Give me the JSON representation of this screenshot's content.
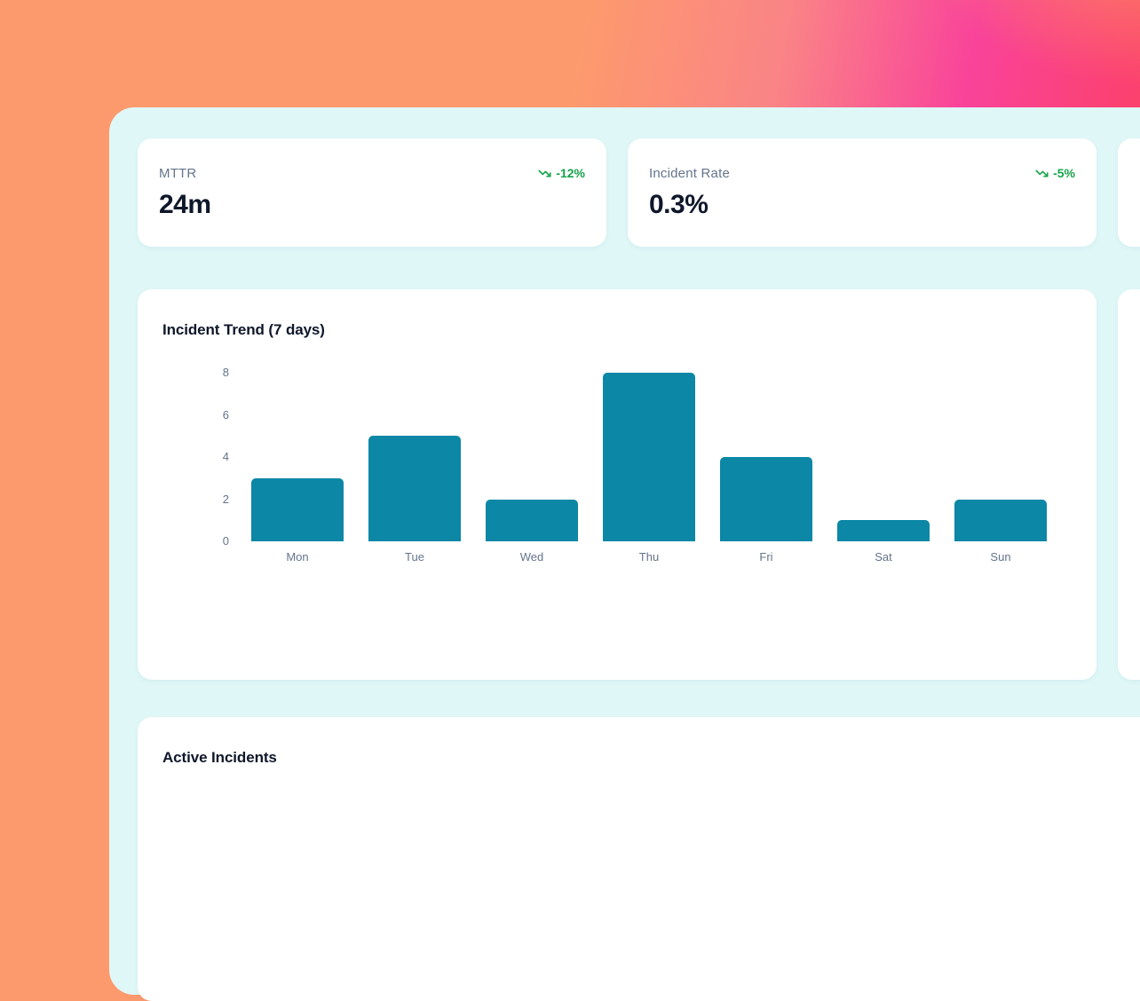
{
  "stat_cards": [
    {
      "label": "MTTR",
      "value": "24m",
      "trend": "-12%"
    },
    {
      "label": "Incident Rate",
      "value": "0.3%",
      "trend": "-5%"
    }
  ],
  "chart_card": {
    "title": "Incident Trend (7 days)"
  },
  "chart_data": {
    "type": "bar",
    "title": "Incident Trend (7 days)",
    "categories": [
      "Mon",
      "Tue",
      "Wed",
      "Thu",
      "Fri",
      "Sat",
      "Sun"
    ],
    "values": [
      3,
      5,
      2,
      8,
      4,
      1,
      2
    ],
    "xlabel": "",
    "ylabel": "",
    "ylim": [
      0,
      8
    ],
    "yticks": [
      0,
      2,
      4,
      6,
      8
    ],
    "grid": false,
    "legend": false,
    "bar_color": "#0c87a6"
  },
  "incidents_card": {
    "title": "Active Incidents"
  },
  "colors": {
    "panel_mint": "#dff7f7",
    "card_white": "#ffffff",
    "bar_teal": "#0c87a6",
    "trend_green": "#16a34a",
    "label_gray": "#64748b",
    "heading_dark": "#0f172a",
    "bg_orange": "#fd9a6d",
    "bg_pink": "#f9439a",
    "bg_red": "#fb4158"
  }
}
